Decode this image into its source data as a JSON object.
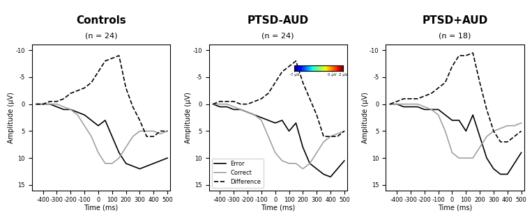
{
  "chart_data": [
    {
      "type": "line",
      "title": "Controls",
      "subtitle": "(n = 24)",
      "xlabel": "Time (ms)",
      "ylabel": "Amplitude (μV)",
      "x": [
        -450,
        -400,
        -350,
        -300,
        -250,
        -200,
        -150,
        -100,
        -50,
        0,
        50,
        100,
        150,
        200,
        250,
        300,
        350,
        400,
        450,
        500
      ],
      "xlim": [
        -480,
        520
      ],
      "xticks": [
        -400,
        -300,
        -200,
        -100,
        0,
        100,
        200,
        300,
        400,
        500
      ],
      "ylim": [
        16,
        -11
      ],
      "yticks": [
        -10,
        -5,
        0,
        5,
        10,
        15
      ],
      "series": [
        {
          "name": "Error",
          "color": "#000000",
          "line_style": "solid",
          "values": [
            0,
            0,
            0,
            0.5,
            1,
            1,
            1.5,
            2,
            3,
            4,
            3,
            6,
            9,
            11,
            11.5,
            12,
            11.5,
            11,
            10.5,
            10
          ]
        },
        {
          "name": "Correct",
          "color": "#a0a0a0",
          "line_style": "solid",
          "values": [
            0,
            0,
            0,
            0,
            0.5,
            1,
            2,
            4,
            6,
            9,
            11,
            11,
            10,
            8,
            6,
            5,
            5,
            5,
            5.5,
            5
          ]
        },
        {
          "name": "Difference",
          "color": "#000000",
          "line_style": "dashed",
          "values": [
            0,
            0,
            -0.5,
            -0.5,
            -1,
            -2,
            -2.5,
            -3,
            -4,
            -6,
            -8,
            -8.5,
            -9,
            -3,
            0.5,
            3,
            6,
            6,
            5,
            5
          ]
        }
      ]
    },
    {
      "type": "line",
      "title": "PTSD-AUD",
      "subtitle": "(n = 24)",
      "xlabel": "Time (ms)",
      "ylabel": "Amplitude (μV)",
      "x": [
        -450,
        -400,
        -350,
        -300,
        -250,
        -200,
        -150,
        -100,
        -50,
        0,
        50,
        100,
        150,
        200,
        250,
        300,
        350,
        400,
        450,
        500
      ],
      "xlim": [
        -480,
        520
      ],
      "xticks": [
        -400,
        -300,
        -200,
        -100,
        0,
        100,
        200,
        300,
        400,
        500
      ],
      "ylim": [
        16,
        -11
      ],
      "yticks": [
        -10,
        -5,
        0,
        5,
        10,
        15
      ],
      "legend": "lower left",
      "colorbar": {
        "range": [
          -7,
          2
        ],
        "ticks": [
          {
            "value": -7,
            "label": "-7 μV"
          },
          {
            "value": 0,
            "label": "0 μV"
          },
          {
            "value": 2,
            "label": "2 μV"
          }
        ]
      },
      "series": [
        {
          "name": "Error",
          "color": "#000000",
          "line_style": "solid",
          "values": [
            0,
            0.5,
            0.5,
            1,
            1,
            1.5,
            2,
            2.5,
            3,
            3.5,
            3,
            5,
            3.5,
            8,
            11,
            12,
            13,
            13.5,
            12,
            10.5
          ]
        },
        {
          "name": "Correct",
          "color": "#a0a0a0",
          "line_style": "solid",
          "values": [
            0,
            0,
            0,
            0.5,
            1,
            1.5,
            2,
            3,
            6,
            9,
            10.5,
            11,
            11,
            12,
            11,
            9,
            7,
            6,
            5.5,
            5
          ]
        },
        {
          "name": "Difference",
          "color": "#000000",
          "line_style": "dashed",
          "values": [
            0,
            -0.5,
            -0.5,
            -0.5,
            0,
            0,
            -0.5,
            -1,
            -2,
            -4,
            -6,
            -7,
            -8,
            -4,
            -1,
            2,
            6,
            6,
            6,
            5
          ]
        }
      ]
    },
    {
      "type": "line",
      "title": "PTSD+AUD",
      "subtitle": "(n = 18)",
      "xlabel": "Time (ms)",
      "ylabel": "Amplitude (μV)",
      "x": [
        -450,
        -400,
        -350,
        -300,
        -250,
        -200,
        -150,
        -100,
        -50,
        0,
        50,
        100,
        150,
        200,
        250,
        300,
        350,
        400,
        450,
        500
      ],
      "xlim": [
        -480,
        520
      ],
      "xticks": [
        -400,
        -300,
        -200,
        -100,
        0,
        100,
        200,
        300,
        400,
        500
      ],
      "ylim": [
        16,
        -11
      ],
      "yticks": [
        -10,
        -5,
        0,
        5,
        10,
        15
      ],
      "series": [
        {
          "name": "Error",
          "color": "#000000",
          "line_style": "solid",
          "values": [
            0,
            0,
            0.5,
            0.5,
            0.5,
            1,
            1,
            1,
            2,
            3,
            3,
            5,
            2,
            6,
            10,
            12,
            13,
            13,
            11,
            9
          ]
        },
        {
          "name": "Correct",
          "color": "#a0a0a0",
          "line_style": "solid",
          "values": [
            0,
            0,
            0,
            0,
            0,
            0.5,
            1,
            2,
            5,
            9,
            10,
            10,
            10,
            8,
            6,
            5,
            4.5,
            4,
            4,
            3.5
          ]
        },
        {
          "name": "Difference",
          "color": "#000000",
          "line_style": "dashed",
          "values": [
            0,
            -0.5,
            -1,
            -1,
            -1,
            -1.5,
            -2,
            -3,
            -4,
            -7,
            -9,
            -9,
            -9.5,
            -4,
            1,
            5,
            7,
            7,
            6,
            5
          ]
        }
      ]
    }
  ]
}
